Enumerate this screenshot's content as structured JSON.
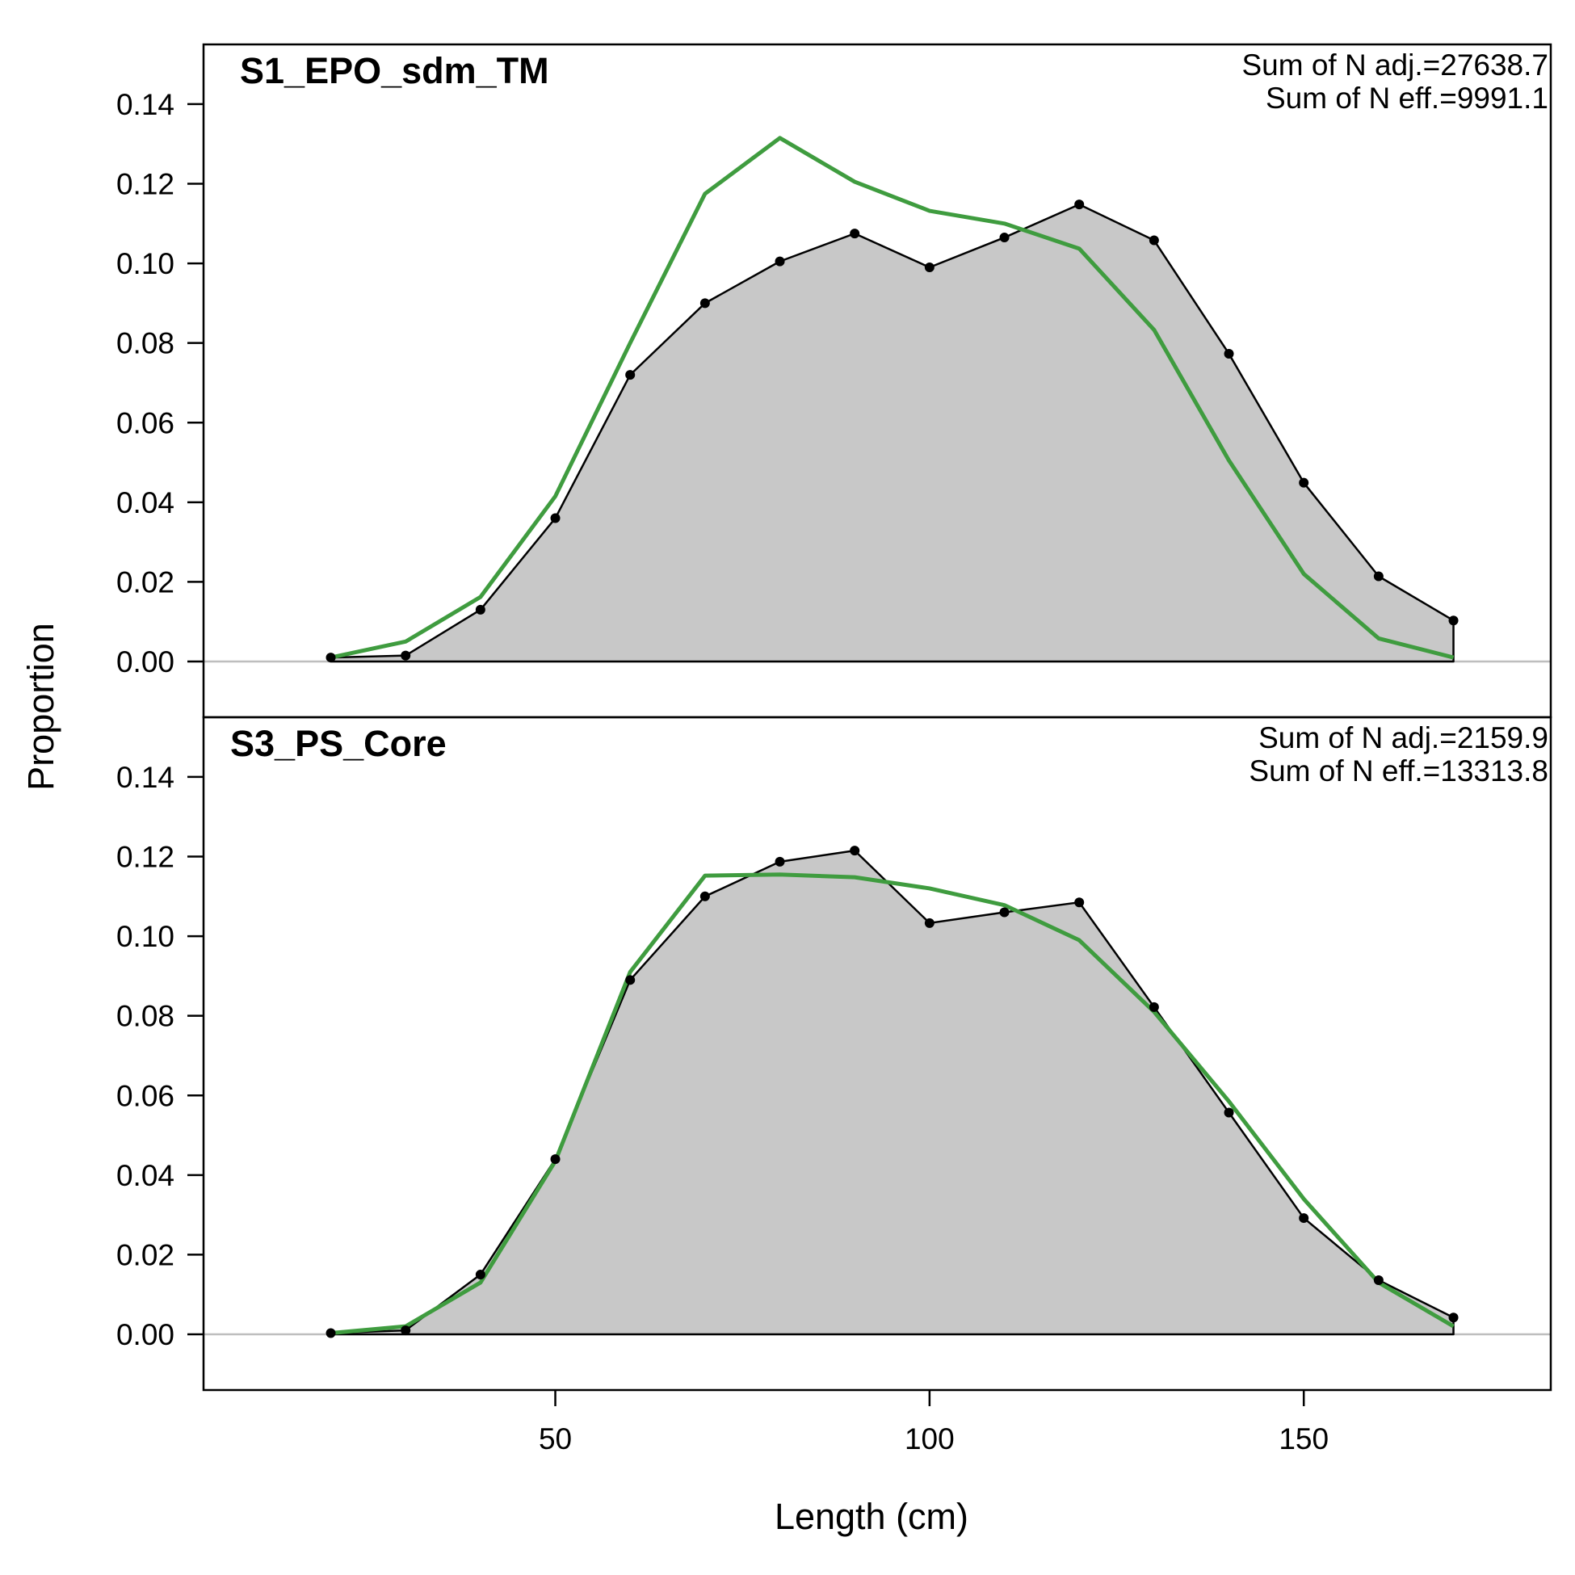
{
  "chart_data": {
    "type": "area",
    "xlabel": "Length (cm)",
    "ylabel": "Proportion",
    "xlim": [
      3,
      183
    ],
    "ylim": [
      -0.014,
      0.155
    ],
    "x_ticks": [
      50,
      100,
      150
    ],
    "y_ticks": [
      "0.00",
      "0.02",
      "0.04",
      "0.06",
      "0.08",
      "0.10",
      "0.12",
      "0.14"
    ],
    "x": [
      20,
      30,
      40,
      50,
      60,
      70,
      80,
      90,
      100,
      110,
      120,
      130,
      140,
      150,
      160,
      170
    ],
    "colors": {
      "observed_fill": "#c8c8c8",
      "observed_line": "#000000",
      "expected_line": "#3f9c3f",
      "zero_line": "#bebebe"
    },
    "panels": [
      {
        "title": "S1_EPO_sdm_TM",
        "annotations": [
          "Sum of N adj.=27638.7",
          "Sum of N eff.=9991.1"
        ],
        "observed": [
          0.001,
          0.0015,
          0.013,
          0.036,
          0.072,
          0.09,
          0.1005,
          0.1075,
          0.099,
          0.1065,
          0.1148,
          0.1058,
          0.0773,
          0.0449,
          0.0214,
          0.0103
        ],
        "expected": [
          0.001,
          0.005,
          0.0162,
          0.0415,
          0.08,
          0.1175,
          0.1315,
          0.1205,
          0.1132,
          0.11,
          0.1037,
          0.0833,
          0.0505,
          0.022,
          0.0058,
          0.001
        ]
      },
      {
        "title": "S3_PS_Core",
        "annotations": [
          "Sum of N adj.=2159.9",
          "Sum of N eff.=13313.8"
        ],
        "observed": [
          0.0003,
          0.001,
          0.015,
          0.044,
          0.089,
          0.11,
          0.1187,
          0.1215,
          0.1033,
          0.106,
          0.1085,
          0.0822,
          0.0557,
          0.0292,
          0.0136,
          0.0042
        ],
        "expected": [
          0.0003,
          0.002,
          0.013,
          0.0435,
          0.091,
          0.1152,
          0.1155,
          0.1148,
          0.112,
          0.1078,
          0.099,
          0.081,
          0.0585,
          0.034,
          0.013,
          0.002
        ]
      }
    ]
  }
}
